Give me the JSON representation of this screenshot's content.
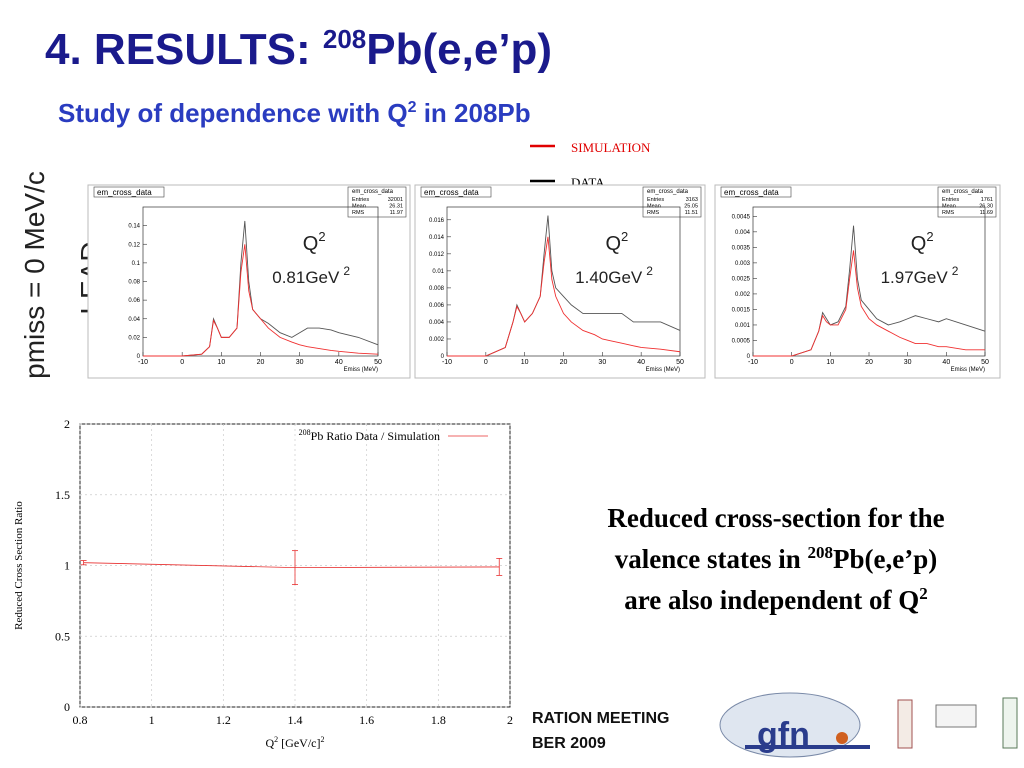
{
  "title": {
    "main": "4. RESULTS: ",
    "sup": "208",
    "rest": "Pb(e,e’p)"
  },
  "subtitle": {
    "main": "Study of dependence with Q",
    "sup": "2",
    "rest": " in 208Pb"
  },
  "side_label": "pmiss = 0 MeV/c",
  "side_label2": "LEAD",
  "legend": [
    {
      "name": "SIMULATION",
      "color": "#e00000"
    },
    {
      "name": "DATA",
      "color": "#000000"
    }
  ],
  "histograms": [
    {
      "title": "em_cross_data",
      "stats": [
        {
          "label": "Entries",
          "value": "32001"
        },
        {
          "label": "Mean",
          "value": "26.31"
        },
        {
          "label": "RMS",
          "value": "11.97"
        }
      ],
      "q": "Q",
      "q_sup": "2",
      "energy": "0.81GeV",
      "energy_sup": "2",
      "xlabel": "Emiss (MeV)",
      "x": [
        -10,
        -5,
        0,
        5,
        7,
        8,
        9,
        10,
        12,
        14,
        15,
        16,
        17,
        18,
        20,
        22,
        25,
        28,
        30,
        32,
        35,
        38,
        40,
        45,
        50
      ],
      "data": [
        0,
        0,
        0,
        0.002,
        0.01,
        0.04,
        0.03,
        0.02,
        0.02,
        0.03,
        0.1,
        0.145,
        0.08,
        0.05,
        0.04,
        0.035,
        0.025,
        0.02,
        0.025,
        0.03,
        0.03,
        0.028,
        0.025,
        0.02,
        0.012
      ],
      "sim": [
        0,
        0,
        0,
        0.002,
        0.01,
        0.038,
        0.03,
        0.02,
        0.02,
        0.03,
        0.09,
        0.12,
        0.07,
        0.05,
        0.04,
        0.03,
        0.02,
        0.015,
        0.012,
        0.01,
        0.008,
        0.006,
        0.005,
        0.003,
        0.002
      ],
      "xlim": [
        -10,
        50
      ],
      "xticks": [
        -10,
        0,
        10,
        20,
        30,
        40,
        50
      ],
      "ylim": [
        0,
        0.16
      ],
      "yticks": [
        0,
        0.02,
        0.04,
        0.06,
        0.08,
        0.1,
        0.12,
        0.14
      ]
    },
    {
      "title": "em_cross_data",
      "stats": [
        {
          "label": "Entries",
          "value": "3163"
        },
        {
          "label": "Mean",
          "value": "25.05"
        },
        {
          "label": "RMS",
          "value": "11.51"
        }
      ],
      "q": "Q",
      "q_sup": "2",
      "energy": "1.40GeV",
      "energy_sup": "2",
      "xlabel": "Emiss (MeV)",
      "x": [
        -10,
        -5,
        0,
        5,
        7,
        8,
        9,
        10,
        12,
        14,
        15,
        16,
        17,
        18,
        20,
        22,
        25,
        28,
        30,
        32,
        35,
        38,
        40,
        45,
        50
      ],
      "data": [
        0,
        0,
        0,
        0.001,
        0.004,
        0.006,
        0.005,
        0.004,
        0.005,
        0.007,
        0.012,
        0.0165,
        0.01,
        0.008,
        0.007,
        0.006,
        0.005,
        0.005,
        0.005,
        0.005,
        0.005,
        0.004,
        0.004,
        0.004,
        0.003
      ],
      "sim": [
        0,
        0,
        0,
        0.001,
        0.004,
        0.0058,
        0.005,
        0.004,
        0.005,
        0.007,
        0.011,
        0.014,
        0.009,
        0.007,
        0.005,
        0.004,
        0.003,
        0.0025,
        0.002,
        0.0018,
        0.0015,
        0.0012,
        0.001,
        0.0008,
        0.0005
      ],
      "xlim": [
        -10,
        50
      ],
      "xticks": [
        -10,
        0,
        10,
        20,
        30,
        40,
        50
      ],
      "ylim": [
        0,
        0.0175
      ],
      "yticks": [
        0,
        0.002,
        0.004,
        0.006,
        0.008,
        0.01,
        0.012,
        0.014,
        0.016
      ]
    },
    {
      "title": "em_cross_data",
      "stats": [
        {
          "label": "Entries",
          "value": "1761"
        },
        {
          "label": "Mean",
          "value": "26.30"
        },
        {
          "label": "RMS",
          "value": "11.69"
        }
      ],
      "q": "Q",
      "q_sup": "2",
      "energy": "1.97GeV",
      "energy_sup": "2",
      "xlabel": "Emiss (MeV)",
      "x": [
        -10,
        -5,
        0,
        5,
        7,
        8,
        9,
        10,
        12,
        14,
        15,
        16,
        17,
        18,
        20,
        22,
        25,
        28,
        30,
        32,
        35,
        38,
        40,
        45,
        50
      ],
      "data": [
        0,
        0,
        0,
        0.0002,
        0.0008,
        0.0014,
        0.0012,
        0.001,
        0.0011,
        0.0016,
        0.0028,
        0.0042,
        0.0025,
        0.0018,
        0.0015,
        0.0012,
        0.001,
        0.0011,
        0.0012,
        0.0013,
        0.0012,
        0.0011,
        0.0012,
        0.001,
        0.0008
      ],
      "sim": [
        0,
        0,
        0,
        0.0002,
        0.0008,
        0.0013,
        0.0011,
        0.001,
        0.001,
        0.0015,
        0.0025,
        0.0034,
        0.0022,
        0.0016,
        0.0012,
        0.001,
        0.0008,
        0.0006,
        0.0005,
        0.0004,
        0.0004,
        0.0003,
        0.0003,
        0.0002,
        0.0002
      ],
      "xlim": [
        -10,
        50
      ],
      "xticks": [
        -10,
        0,
        10,
        20,
        30,
        40,
        50
      ],
      "ylim": [
        0,
        0.0048
      ],
      "yticks": [
        0,
        0.0005,
        0.001,
        0.0015,
        0.002,
        0.0025,
        0.003,
        0.0035,
        0.004,
        0.0045
      ]
    }
  ],
  "chart_data": {
    "type": "line",
    "legend_sup": "208",
    "legend": "Pb Ratio Data / Simulation",
    "xlabel": {
      "main": "Q",
      "sup": "2",
      "rest": " [GeV/c]",
      "sup2": "2"
    },
    "ylabel": "Reduced Cross Section Ratio",
    "series": [
      {
        "name": "Pb Ratio Data / Simulation",
        "color": "#e83030",
        "x": [
          0.81,
          1.4,
          1.97
        ],
        "values": [
          1.02,
          0.985,
          0.99
        ],
        "errors": [
          0.015,
          0.12,
          0.06
        ]
      }
    ],
    "xlim": [
      0.8,
      2
    ],
    "xticks": [
      0.8,
      1,
      1.2,
      1.4,
      1.6,
      1.8,
      2
    ],
    "ylim": [
      0,
      2
    ],
    "yticks": [
      0,
      0.5,
      1,
      1.5,
      2
    ],
    "grid": true
  },
  "caption": [
    {
      "text": "Reduced cross-section for the"
    },
    {
      "text": "valence states in ",
      "sup": "208",
      "rest": "Pb(e,e’p)"
    },
    {
      "text": "are also independent of Q",
      "sup": "2"
    }
  ],
  "footer": [
    "RATION MEETING",
    "BER 2009"
  ],
  "logo": "gfn"
}
